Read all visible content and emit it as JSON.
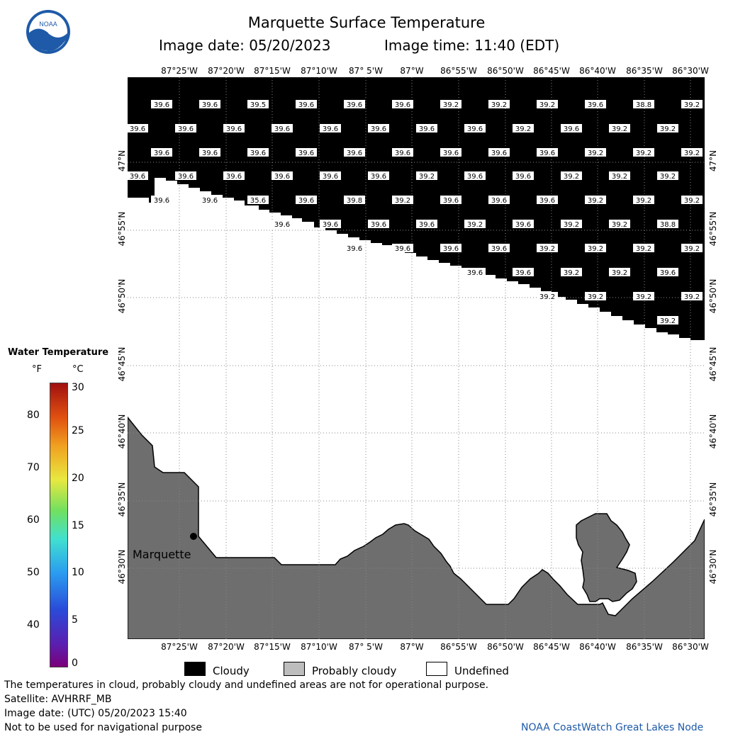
{
  "header": {
    "title": "Marquette Surface Temperature",
    "image_date": "Image date: 05/20/2023",
    "image_time": "Image time: 11:40 (EDT)"
  },
  "logo": {
    "text": "NOAA"
  },
  "map": {
    "lon_labels": [
      "87°25'W",
      "87°20'W",
      "87°15'W",
      "87°10'W",
      "87° 5'W",
      "87°W",
      "86°55'W",
      "86°50'W",
      "86°45'W",
      "86°40'W",
      "86°35'W",
      "86°30'W"
    ],
    "lat_labels": [
      "47°N",
      "46°55'N",
      "46°50'N",
      "46°45'N",
      "46°40'N",
      "46°35'N",
      "46°30'N"
    ],
    "city_label": "Marquette",
    "colors": {
      "cloud": "#000000",
      "land": "#6e6e6e",
      "undefined": "#ffffff",
      "grid": "#888888"
    },
    "temperature_rows": [
      [
        "39.6",
        "39.6",
        "39.5",
        "39.6",
        "39.6",
        "39.6",
        "39.2",
        "39.2",
        "39.2",
        "39.6",
        "38.8",
        "39.2"
      ],
      [
        "39.6",
        "39.6",
        "39.6",
        "39.6",
        "39.6",
        "39.6",
        "39.6",
        "39.6",
        "39.2",
        "39.6",
        "39.2",
        "39.2"
      ],
      [
        "39.6",
        "39.6",
        "39.6",
        "39.6",
        "39.6",
        "39.6",
        "39.6",
        "39.6",
        "39.6",
        "39.2",
        "39.2",
        "39.2"
      ],
      [
        "39.6",
        "39.6",
        "39.6",
        "39.6",
        "39.6",
        "39.6",
        "39.2",
        "39.6",
        "39.6",
        "39.2",
        "39.2",
        "39.2"
      ],
      [
        "39.6",
        "39.6",
        "35.6",
        "39.6",
        "39.8",
        "39.2",
        "39.6",
        "39.6",
        "39.6",
        "39.2",
        "39.2",
        "39.2"
      ],
      [
        "39.6",
        "39.6",
        "39.6",
        "39.6",
        "39.2",
        "39.6",
        "39.2",
        "39.2",
        "38.8"
      ],
      [
        "39.6",
        "39.6",
        "39.6",
        "39.6",
        "39.2",
        "39.2",
        "39.2",
        "39.2"
      ],
      [
        "39.6",
        "39.6",
        "39.2",
        "39.2",
        "39.6"
      ],
      [
        "39.2",
        "39.2",
        "39.2",
        "39.2"
      ],
      [
        "39.2"
      ]
    ]
  },
  "colorbar": {
    "title": "Water Temperature",
    "unit_f": "°F",
    "unit_c": "°C",
    "f_ticks": [
      "80",
      "70",
      "60",
      "50",
      "40"
    ],
    "c_ticks": [
      "30",
      "25",
      "20",
      "15",
      "10",
      "5",
      "0"
    ]
  },
  "legend": {
    "cloudy": "Cloudy",
    "probably_cloudy": "Probably cloudy",
    "undefined": "Undefined"
  },
  "footer": {
    "disclaimer": "The temperatures in cloud, probably cloudy and undefined areas are not for operational purpose.",
    "satellite": "Satellite: AVHRRF_MB",
    "utc_date": "Image date: (UTC) 05/20/2023  15:40",
    "nav_warning": "Not to be used for navigational purpose",
    "credit": "NOAA CoastWatch Great Lakes Node"
  }
}
